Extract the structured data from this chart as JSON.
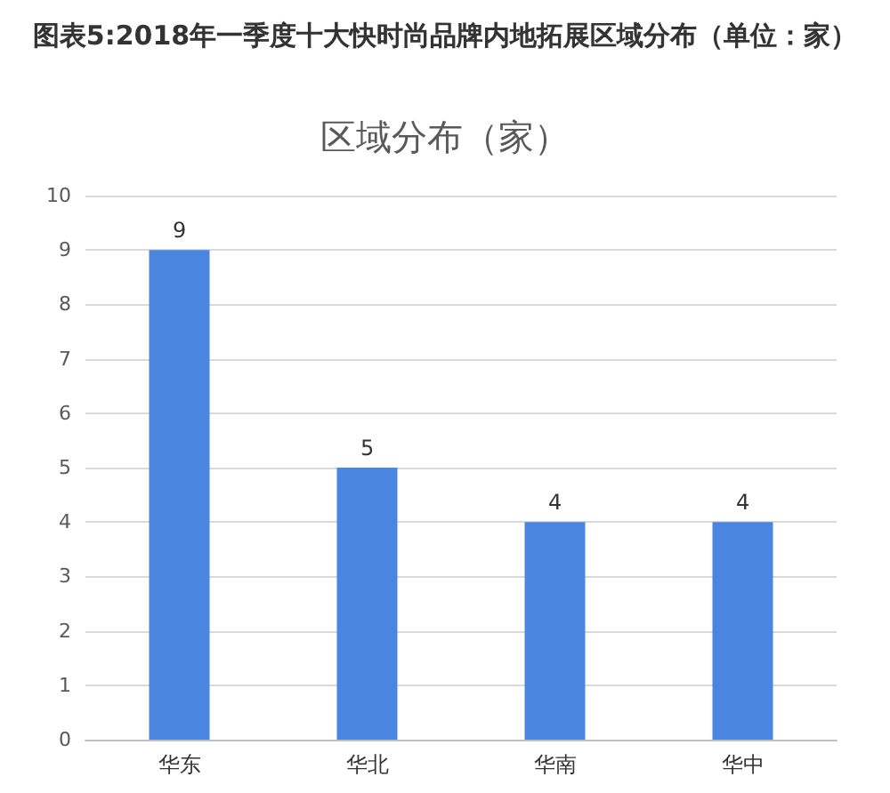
{
  "chart_data": {
    "type": "bar",
    "title": "图表5:2018年一季度十大快时尚品牌内地拓展区域分布（单位：家）",
    "subtitle": "区域分布（家）",
    "categories": [
      "华东",
      "华北",
      "华南",
      "华中"
    ],
    "values": [
      9,
      5,
      4,
      4
    ],
    "color": "#4a86e0",
    "ylim": [
      0,
      10
    ],
    "yticks": [
      0,
      1,
      2,
      3,
      4,
      5,
      6,
      7,
      8,
      9,
      10
    ],
    "grid": "y",
    "data_labels": true
  }
}
